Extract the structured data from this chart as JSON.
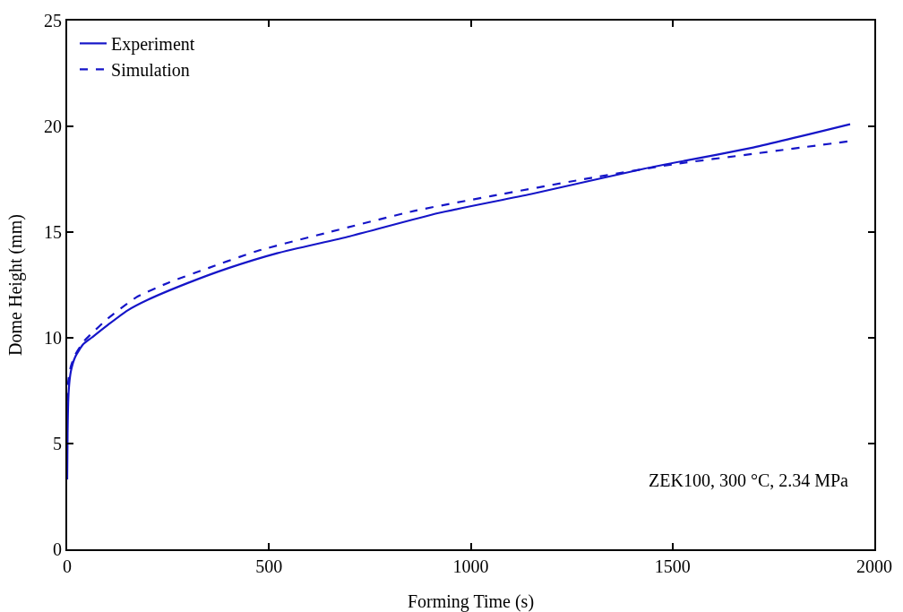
{
  "chart_data": {
    "type": "line",
    "xlabel": "Forming Time (s)",
    "ylabel": "Dome Height (mm)",
    "xlim": [
      0,
      2000
    ],
    "ylim": [
      0,
      25
    ],
    "xticks": [
      0,
      500,
      1000,
      1500,
      2000
    ],
    "yticks": [
      0,
      5,
      10,
      15,
      20,
      25
    ],
    "grid": false,
    "legend": "top left",
    "marker": "none",
    "annotations": [
      "ZEK100, 300 °C, 2.34 MPa"
    ],
    "series": [
      {
        "name": "Experiment",
        "color": "#1515c8",
        "line_style": "solid",
        "x": [
          0,
          1,
          3,
          6,
          10,
          20,
          40,
          60,
          100,
          150,
          200,
          300,
          400,
          520,
          700,
          920,
          1150,
          1430,
          1700,
          1940
        ],
        "values": [
          3.3,
          5.5,
          7.2,
          8,
          8.5,
          9.1,
          9.7,
          10,
          10.6,
          11.3,
          11.8,
          12.6,
          13.3,
          14,
          14.8,
          15.9,
          16.8,
          18,
          19,
          20.1
        ]
      },
      {
        "name": "Simulation",
        "color": "#1515c8",
        "line_style": "dashed",
        "x": [
          0,
          2,
          5,
          10,
          20,
          40,
          55,
          100,
          170,
          250,
          350,
          470,
          650,
          860,
          1050,
          1280,
          1500,
          1700,
          1940
        ],
        "values": [
          7,
          7.8,
          8.3,
          8.7,
          9.2,
          9.8,
          10.1,
          10.9,
          11.9,
          12.6,
          13.3,
          14.1,
          15,
          16,
          16.7,
          17.5,
          18.2,
          18.7,
          19.3
        ]
      }
    ]
  }
}
